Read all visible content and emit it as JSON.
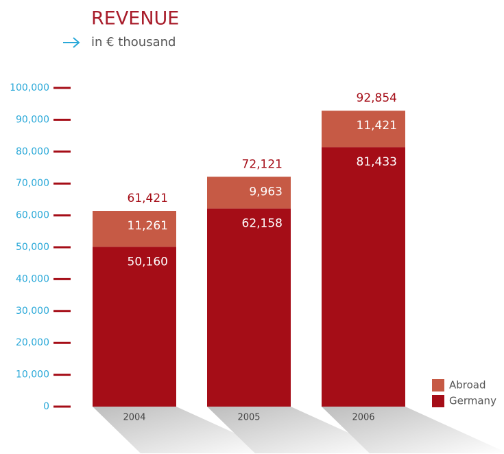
{
  "chart_data": {
    "type": "stacked_bar",
    "title": "REVENUE",
    "subtitle": "in € thousand",
    "categories": [
      "2004",
      "2005",
      "2006"
    ],
    "series": [
      {
        "name": "Germany",
        "color": "#a50d17",
        "values": [
          50160,
          62158,
          81433
        ],
        "value_labels": [
          "50,160",
          "62,158",
          "81,433"
        ]
      },
      {
        "name": "Abroad",
        "color": "#c65a45",
        "values": [
          11261,
          9963,
          11421
        ],
        "value_labels": [
          "11,261",
          "9,963",
          "11,421"
        ]
      }
    ],
    "totals": [
      61421,
      72121,
      92854
    ],
    "total_labels": [
      "61,421",
      "72,121",
      "92,854"
    ],
    "ylim": [
      0,
      100000
    ],
    "yticks": [
      0,
      {
        "value": 10000,
        "label": "10,000"
      },
      {
        "value": 20000,
        "label": "20,000"
      },
      {
        "value": 30000,
        "label": "30,000"
      },
      {
        "value": 40000,
        "label": "40,000"
      },
      {
        "value": 50000,
        "label": "50,000"
      },
      {
        "value": 60000,
        "label": "60,000"
      },
      {
        "value": 70000,
        "label": "70,000"
      },
      {
        "value": 80000,
        "label": "80,000"
      },
      {
        "value": 90000,
        "label": "90,000"
      },
      {
        "value": 100000,
        "label": "100,000"
      }
    ],
    "legend": "bottom-right"
  }
}
